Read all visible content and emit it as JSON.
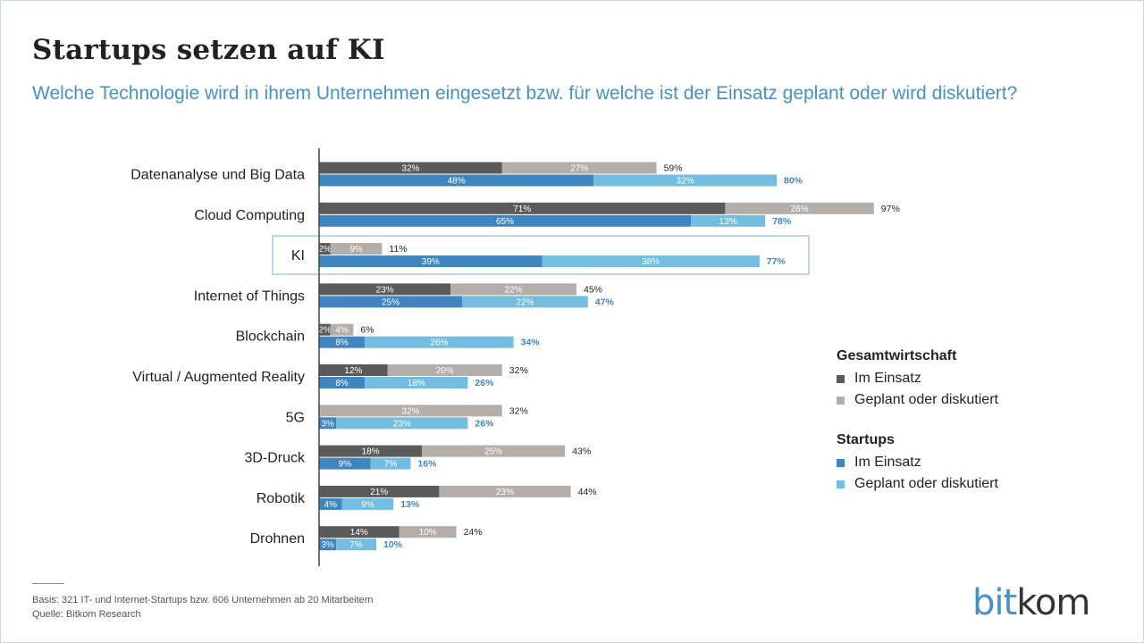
{
  "title": "Startups setzen auf KI",
  "subtitle": "Welche Technologie wird in ihrem Unternehmen eingesetzt bzw. für welche ist der Einsatz geplant oder wird diskutiert?",
  "legend": {
    "group1_title": "Gesamtwirtschaft",
    "group1_items": [
      "Im Einsatz",
      "Geplant oder diskutiert"
    ],
    "group2_title": "Startups",
    "group2_items": [
      "Im Einsatz",
      "Geplant oder diskutiert"
    ]
  },
  "footnote": {
    "line1": "Basis: 321 IT- und Internet-Startups bzw. 606 Unternehmen ab 20 Mitarbeitern",
    "line2": "Quelle: Bitkom Research"
  },
  "logo": {
    "part1": "bit",
    "part2": "kom"
  },
  "colors": {
    "gesamt_einsatz": "#5a5a5a",
    "gesamt_geplant": "#b3aea9",
    "startup_einsatz": "#3f86c0",
    "startup_geplant": "#72bde0",
    "highlight_border": "#a9c8de",
    "axis": "#444444",
    "label_dark": "#222222",
    "total_blue": "#3f86c0"
  },
  "chart_data": {
    "type": "bar",
    "orientation": "horizontal",
    "stacked": true,
    "highlight_category": "KI",
    "categories": [
      "Datenanalyse und Big Data",
      "Cloud Computing",
      "KI",
      "Internet of Things",
      "Blockchain",
      "Virtual / Augmented Reality",
      "5G",
      "3D-Druck",
      "Robotik",
      "Drohnen"
    ],
    "groups": [
      {
        "name": "Gesamtwirtschaft",
        "series": [
          {
            "name": "Im Einsatz",
            "values": [
              32,
              71,
              2,
              23,
              2,
              12,
              0,
              18,
              21,
              14
            ]
          },
          {
            "name": "Geplant oder diskutiert",
            "values": [
              27,
              26,
              9,
              22,
              4,
              20,
              32,
              25,
              23,
              10
            ]
          }
        ],
        "totals": [
          59,
          97,
          11,
          45,
          6,
          32,
          32,
          43,
          44,
          24
        ]
      },
      {
        "name": "Startups",
        "series": [
          {
            "name": "Im Einsatz",
            "values": [
              48,
              65,
              39,
              25,
              8,
              8,
              3,
              9,
              4,
              3
            ]
          },
          {
            "name": "Geplant oder diskutiert",
            "values": [
              32,
              13,
              38,
              22,
              26,
              18,
              23,
              7,
              9,
              7
            ]
          }
        ],
        "totals": [
          80,
          78,
          77,
          47,
          34,
          26,
          26,
          16,
          13,
          10
        ]
      }
    ],
    "value_suffix": "%",
    "xlim": [
      0,
      100
    ]
  }
}
